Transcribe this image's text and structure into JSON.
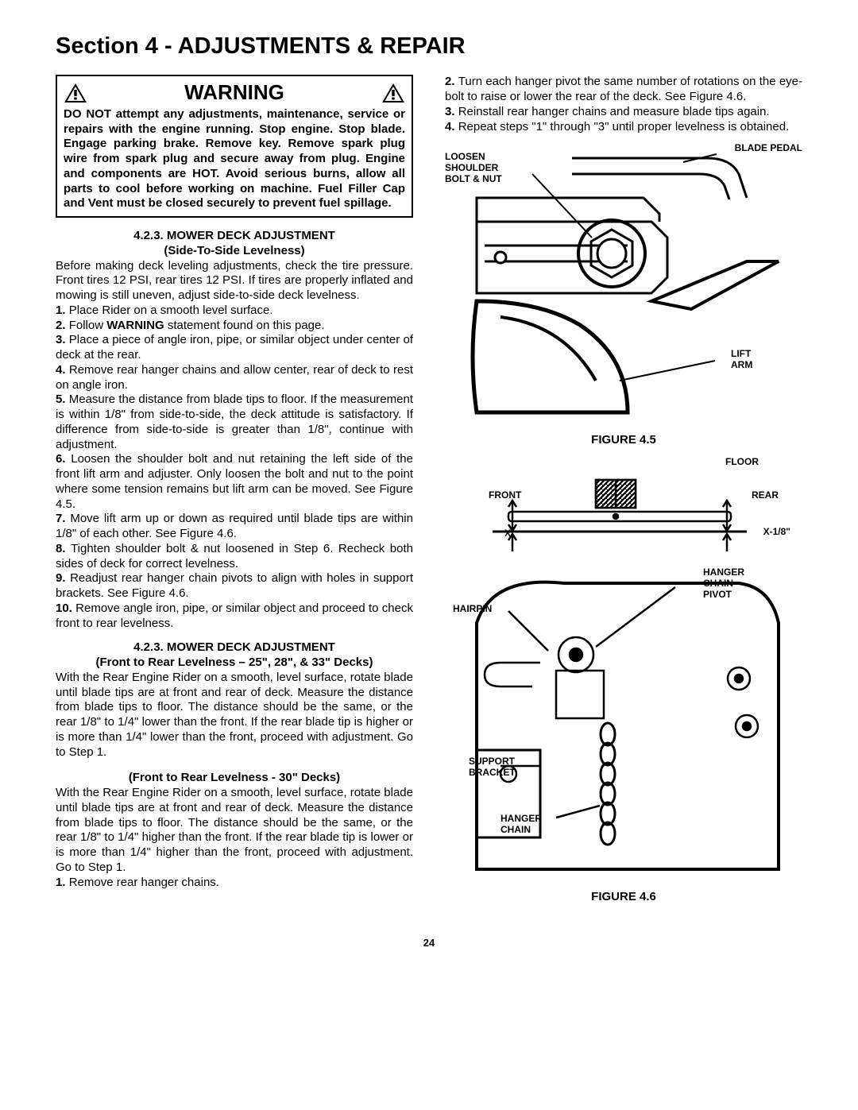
{
  "section_title": "Section 4 - ADJUSTMENTS & REPAIR",
  "warning": {
    "heading": "WARNING",
    "body": "DO NOT attempt any adjustments, maintenance, service or repairs with the engine running. Stop engine. Stop blade. Engage parking brake. Remove key. Remove spark plug wire from spark plug and secure away from plug. Engine and components are HOT. Avoid serious burns, allow all parts to cool before working on machine. Fuel Filler Cap and Vent must be closed securely to prevent fuel spillage."
  },
  "sec423a": {
    "title": "4.2.3.  MOWER DECK ADJUSTMENT",
    "subtitle": "(Side-To-Side Levelness)",
    "intro": "Before making deck leveling adjustments, check the tire pressure. Front tires 12 PSI, rear tires 12 PSI. If tires are properly inflated and mowing is still uneven, adjust side-to-side deck levelness.",
    "steps": [
      "Place Rider on a smooth level surface.",
      "Follow WARNING statement found on this page.",
      "Place a piece of angle iron, pipe, or similar object under center of deck at the rear.",
      "Remove rear hanger chains and allow center, rear of deck to rest on angle iron.",
      "Measure the distance from blade tips to floor. If the measurement is within 1/8\" from side-to-side, the deck attitude is satisfactory.  If difference from side-to-side is greater than 1/8\", continue with adjustment.",
      "Loosen the shoulder bolt and nut retaining the left side of the front lift arm and adjuster. Only loosen the bolt and nut to the point where some tension remains but lift arm can be moved. See Figure 4.5.",
      "Move lift arm up or down as required until blade tips are within 1/8\" of each other.  See Figure 4.6.",
      "Tighten shoulder bolt & nut loosened in Step 6. Recheck both sides of deck for correct levelness.",
      "Readjust rear hanger chain pivots to align with holes in support brackets. See Figure 4.6.",
      "Remove angle iron, pipe, or similar object and proceed to check front to rear levelness."
    ]
  },
  "sec423b": {
    "title": "4.2.3.  MOWER DECK ADJUSTMENT",
    "subtitle1": "(Front to Rear Levelness – 25\", 28\", & 33\" Decks)",
    "para1": "With the Rear Engine Rider on a smooth, level surface, rotate blade until blade tips are at front and rear of deck.  Measure the distance from blade tips to floor. The distance should be the same, or the rear 1/8\" to 1/4\" lower than the front. If the rear blade tip is higher or is more than 1/4\" lower than the front, proceed with adjustment. Go to Step 1.",
    "subtitle2": "(Front to Rear Levelness - 30\" Decks)",
    "para2": "With the Rear Engine Rider on a smooth, level surface, rotate blade until blade tips are at front and rear of deck. Measure the distance from blade tips to floor. The distance should be the same, or the rear 1/8\" to 1/4\" higher than the front.  If the rear blade tip is lower or is more than 1/4\" higher than the front, proceed with adjustment. Go to Step 1.",
    "steps_left": [
      "Remove rear hanger chains."
    ],
    "steps_right": [
      "Turn each hanger pivot the same number of rotations on the eye-bolt to raise or lower the rear of the deck.  See Figure 4.6.",
      "Reinstall rear hanger chains and measure blade tips again.",
      "Repeat steps \"1\" through \"3\" until proper levelness is obtained."
    ]
  },
  "fig45": {
    "caption": "FIGURE 4.5",
    "labels": {
      "loosen": "LOOSEN SHOULDER BOLT & NUT",
      "blade_pedal": "BLADE PEDAL",
      "lift_arm": "LIFT ARM"
    }
  },
  "fig46": {
    "caption": "FIGURE 4.6",
    "labels": {
      "floor": "FLOOR",
      "front": "FRONT",
      "rear": "REAR",
      "x": "X",
      "x18": "X-1/8\"",
      "hairpin": "HAIRPIN",
      "hanger_pivot": "HANGER CHAIN PIVOT",
      "support": "SUPPORT BRACKET",
      "hanger_chain": "HANGER CHAIN"
    }
  },
  "page_number": "24"
}
